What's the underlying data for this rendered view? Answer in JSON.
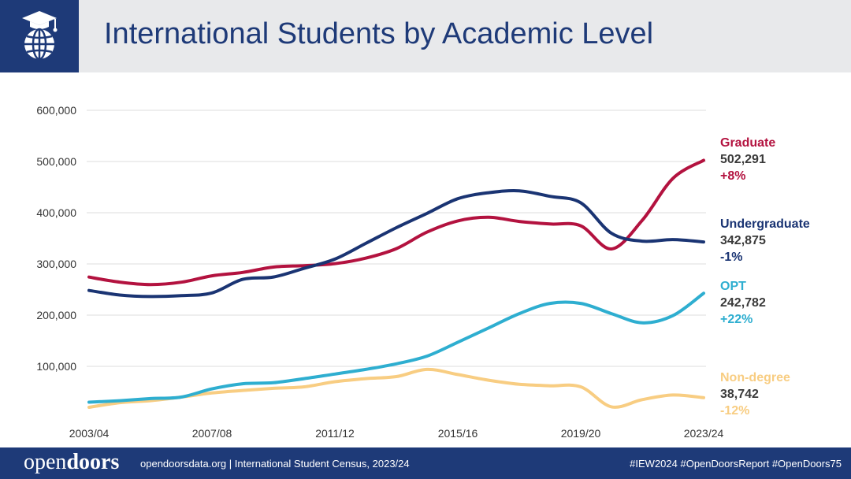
{
  "header": {
    "title": "International Students by Academic Level"
  },
  "footer": {
    "brand_light": "open",
    "brand_bold": "doors",
    "info": "opendoorsdata.org  |  International Student Census, 2023/24",
    "hashtags": "#IEW2024   #OpenDoorsReport   #OpenDoors75"
  },
  "chart_data": {
    "type": "line",
    "title": "International Students by Academic Level",
    "xlabel": "",
    "ylabel": "",
    "x": [
      "2003/04",
      "2004/05",
      "2005/06",
      "2006/07",
      "2007/08",
      "2008/09",
      "2009/10",
      "2010/11",
      "2011/12",
      "2012/13",
      "2013/14",
      "2014/15",
      "2015/16",
      "2016/17",
      "2017/18",
      "2018/19",
      "2019/20",
      "2020/21",
      "2021/22",
      "2022/23",
      "2023/24"
    ],
    "x_tick_labels": [
      "2003/04",
      "2007/08",
      "2011/12",
      "2015/16",
      "2019/20",
      "2023/24"
    ],
    "y_ticks": [
      100000,
      200000,
      300000,
      400000,
      500000,
      600000
    ],
    "y_tick_labels": [
      "100,000",
      "200,000",
      "300,000",
      "400,000",
      "500,000",
      "600,000"
    ],
    "ylim": [
      0,
      600000
    ],
    "grid": "horizontal",
    "legend": "right, end-of-line labels",
    "series": [
      {
        "name": "Graduate",
        "color": "#b3123f",
        "value_label": "502,291",
        "change_label": "+8%",
        "values": [
          274310,
          264410,
          259717,
          264288,
          276842,
          283329,
          293885,
          296576,
          300430,
          311204,
          329854,
          362228,
          383935,
          391124,
          382953,
          377943,
          374435,
          329272,
          385097,
          467027,
          502291
        ]
      },
      {
        "name": "Undergraduate",
        "color": "#1a3473",
        "value_label": "342,875",
        "change_label": "-1%",
        "values": [
          248200,
          239212,
          236342,
          238050,
          243360,
          269874,
          274431,
          291439,
          309342,
          339993,
          370724,
          398824,
          427313,
          439019,
          442746,
          431930,
          419321,
          359787,
          344532,
          347602,
          342875
        ]
      },
      {
        "name": "OPT",
        "color": "#2eaed0",
        "value_label": "242,782",
        "change_label": "+22%",
        "values": [
          30000,
          33000,
          37000,
          40000,
          56000,
          66000,
          68000,
          76000,
          85000,
          94000,
          105000,
          120000,
          147000,
          175000,
          203000,
          223000,
          223000,
          203000,
          185000,
          199000,
          242782
        ]
      },
      {
        "name": "Non-degree",
        "color": "#f8cd82",
        "value_label": "38,742",
        "change_label": "-12%",
        "values": [
          20000,
          29000,
          33000,
          40000,
          48000,
          53000,
          57000,
          60000,
          70000,
          76000,
          80000,
          94000,
          84000,
          73000,
          65000,
          62000,
          60000,
          21000,
          35000,
          44000,
          38742
        ]
      }
    ]
  }
}
